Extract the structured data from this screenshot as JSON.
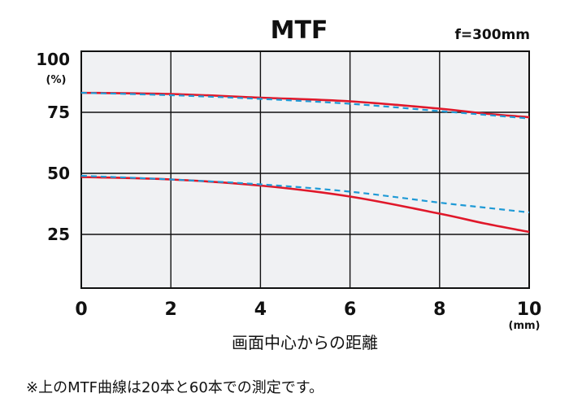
{
  "chart_data": {
    "type": "line",
    "title": "MTF",
    "subtitle": "f=300mm",
    "xlabel": "画面中心からの距離",
    "x_unit": "(mm)",
    "y_unit": "(%)",
    "xlim": [
      0,
      10
    ],
    "ylim": [
      3,
      100
    ],
    "x_ticks": [
      "0",
      "2",
      "4",
      "6",
      "8",
      "10"
    ],
    "y_ticks": [
      {
        "label": "100",
        "value": 100
      },
      {
        "label": "75",
        "value": 75
      },
      {
        "label": "50",
        "value": 50
      },
      {
        "label": "25",
        "value": 25
      }
    ],
    "grid": true,
    "series": [
      {
        "style": "solid",
        "color": "#e0182a",
        "x": [
          0,
          2,
          4,
          6,
          8,
          9,
          10
        ],
        "y": [
          83,
          82.5,
          81,
          79.5,
          76.5,
          74.5,
          73
        ]
      },
      {
        "style": "dashed",
        "color": "#1f9ad6",
        "x": [
          0,
          2,
          4,
          6,
          8,
          9,
          10
        ],
        "y": [
          83,
          82,
          80.5,
          78.5,
          75.5,
          74,
          72.5
        ]
      },
      {
        "style": "solid",
        "color": "#e0182a",
        "x": [
          0,
          2,
          4,
          6,
          8,
          9,
          10
        ],
        "y": [
          48.5,
          47.5,
          45,
          40.5,
          33.5,
          29.5,
          26
        ]
      },
      {
        "style": "dashed",
        "color": "#1f9ad6",
        "x": [
          0,
          2,
          4,
          6,
          8,
          9,
          10
        ],
        "y": [
          49,
          47.5,
          45.5,
          42.5,
          38,
          36,
          34
        ]
      }
    ]
  },
  "footnote": "※上のMTF曲線は20本と60本での測定です。"
}
